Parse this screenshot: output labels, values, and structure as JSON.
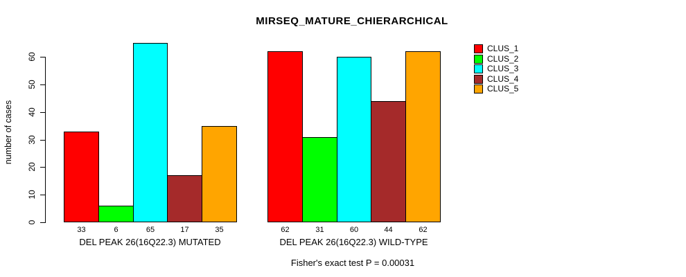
{
  "title": "MIRSEQ_MATURE_CHIERARCHICAL",
  "caption": "Fisher's exact test P = 0.00031",
  "chart_data": {
    "type": "bar",
    "title": "MIRSEQ_MATURE_CHIERARCHICAL",
    "xlabel": "",
    "ylabel": "number of cases",
    "ylim": [
      0,
      60
    ],
    "yticks": [
      0,
      10,
      20,
      30,
      40,
      50,
      60
    ],
    "grid": false,
    "bar_value_labels": true,
    "annotation": "Fisher's exact test P = 0.00031",
    "series_colors": [
      "#FF0000",
      "#00FF00",
      "#00FFFF",
      "#A52A2A",
      "#FFA500"
    ],
    "series_names": [
      "CLUS_1",
      "CLUS_2",
      "CLUS_3",
      "CLUS_4",
      "CLUS_5"
    ],
    "groups": [
      {
        "label": "DEL PEAK 26(16Q22.3) MUTATED",
        "values": [
          33,
          6,
          65,
          17,
          35
        ]
      },
      {
        "label": "DEL PEAK 26(16Q22.3) WILD-TYPE",
        "values": [
          62,
          31,
          60,
          44,
          62
        ]
      }
    ],
    "legend": {
      "position": "right",
      "entries": [
        {
          "label": "CLUS_1",
          "color": "#FF0000"
        },
        {
          "label": "CLUS_2",
          "color": "#00FF00"
        },
        {
          "label": "CLUS_3",
          "color": "#00FFFF"
        },
        {
          "label": "CLUS_4",
          "color": "#A52A2A"
        },
        {
          "label": "CLUS_5",
          "color": "#FFA500"
        }
      ]
    }
  }
}
